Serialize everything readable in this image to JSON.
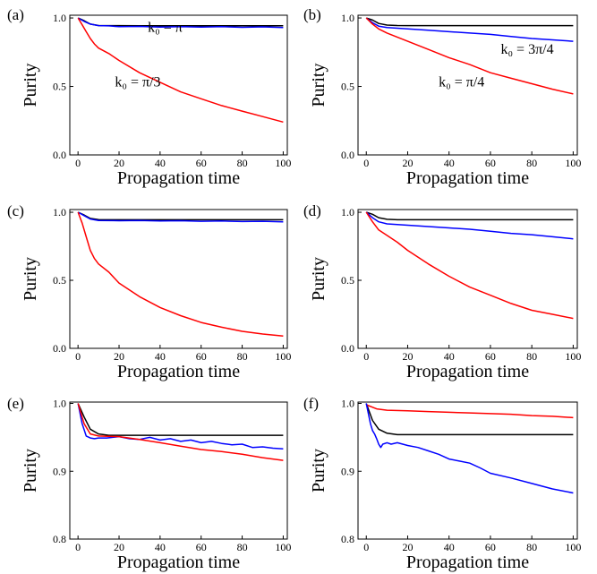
{
  "chart_data": [
    {
      "panel": "(a)",
      "type": "line",
      "xlabel": "Propagation time",
      "ylabel": "Purity",
      "xlim": [
        -4,
        102
      ],
      "ylim": [
        0,
        1.02
      ],
      "xticks": [
        "0",
        "20",
        "40",
        "60",
        "80",
        "100"
      ],
      "yticks": [
        "0.0",
        "0.5",
        "1.0"
      ],
      "series": [
        {
          "color": "#000000",
          "x": [
            0,
            3,
            6,
            10,
            15,
            20,
            30,
            50,
            70,
            100
          ],
          "y": [
            1.0,
            0.98,
            0.955,
            0.945,
            0.944,
            0.944,
            0.943,
            0.943,
            0.943,
            0.943
          ]
        },
        {
          "color": "#0000ff",
          "x": [
            0,
            3,
            6,
            10,
            15,
            20,
            30,
            40,
            50,
            60,
            70,
            80,
            90,
            100
          ],
          "y": [
            1.0,
            0.975,
            0.955,
            0.944,
            0.942,
            0.936,
            0.938,
            0.934,
            0.937,
            0.933,
            0.936,
            0.932,
            0.935,
            0.93
          ]
        },
        {
          "color": "#ff0000",
          "x": [
            0,
            2,
            4,
            6,
            8,
            10,
            15,
            20,
            30,
            40,
            50,
            60,
            70,
            80,
            90,
            100
          ],
          "y": [
            1.0,
            0.95,
            0.9,
            0.85,
            0.81,
            0.78,
            0.74,
            0.69,
            0.6,
            0.53,
            0.46,
            0.41,
            0.36,
            0.32,
            0.28,
            0.24
          ]
        }
      ],
      "annotations": [
        "k₀ = π",
        "k₀ = π/3"
      ]
    },
    {
      "panel": "(b)",
      "type": "line",
      "xlabel": "Propagation time",
      "ylabel": "Purity",
      "xlim": [
        -4,
        102
      ],
      "ylim": [
        0,
        1.02
      ],
      "xticks": [
        "0",
        "20",
        "40",
        "60",
        "80",
        "100"
      ],
      "yticks": [
        "0.0",
        "0.5",
        "1.0"
      ],
      "series": [
        {
          "color": "#000000",
          "x": [
            0,
            3,
            6,
            10,
            15,
            20,
            50,
            100
          ],
          "y": [
            1.0,
            0.985,
            0.96,
            0.948,
            0.945,
            0.944,
            0.944,
            0.944
          ]
        },
        {
          "color": "#0000ff",
          "x": [
            0,
            3,
            6,
            10,
            20,
            30,
            40,
            50,
            60,
            70,
            80,
            90,
            100
          ],
          "y": [
            1.0,
            0.965,
            0.94,
            0.93,
            0.92,
            0.91,
            0.9,
            0.89,
            0.88,
            0.865,
            0.85,
            0.84,
            0.83
          ]
        },
        {
          "color": "#ff0000",
          "x": [
            0,
            3,
            6,
            10,
            20,
            30,
            40,
            50,
            60,
            70,
            80,
            90,
            100
          ],
          "y": [
            1.0,
            0.955,
            0.92,
            0.89,
            0.83,
            0.77,
            0.71,
            0.66,
            0.6,
            0.56,
            0.52,
            0.48,
            0.445
          ]
        }
      ],
      "annotations": [
        "k₀ = 3π/4",
        "k₀ = π/4"
      ]
    },
    {
      "panel": "(c)",
      "type": "line",
      "xlabel": "Propagation time",
      "ylabel": "Purity",
      "xlim": [
        -4,
        102
      ],
      "ylim": [
        0,
        1.02
      ],
      "xticks": [
        "0",
        "20",
        "40",
        "60",
        "80",
        "100"
      ],
      "yticks": [
        "0.0",
        "0.5",
        "1.0"
      ],
      "series": [
        {
          "color": "#000000",
          "x": [
            0,
            3,
            6,
            10,
            15,
            20,
            50,
            100
          ],
          "y": [
            1.0,
            0.98,
            0.955,
            0.946,
            0.945,
            0.945,
            0.945,
            0.945
          ]
        },
        {
          "color": "#0000ff",
          "x": [
            0,
            3,
            6,
            10,
            20,
            30,
            40,
            50,
            60,
            70,
            80,
            90,
            100
          ],
          "y": [
            1.0,
            0.975,
            0.95,
            0.94,
            0.938,
            0.94,
            0.936,
            0.938,
            0.934,
            0.936,
            0.932,
            0.934,
            0.93
          ]
        },
        {
          "color": "#ff0000",
          "x": [
            0,
            2,
            4,
            6,
            8,
            10,
            15,
            20,
            30,
            40,
            50,
            60,
            70,
            80,
            90,
            100
          ],
          "y": [
            1.0,
            0.92,
            0.82,
            0.72,
            0.66,
            0.62,
            0.56,
            0.48,
            0.38,
            0.3,
            0.24,
            0.19,
            0.155,
            0.125,
            0.105,
            0.09
          ]
        }
      ]
    },
    {
      "panel": "(d)",
      "type": "line",
      "xlabel": "Propagation time",
      "ylabel": "Purity",
      "xlim": [
        -4,
        102
      ],
      "ylim": [
        0,
        1.02
      ],
      "xticks": [
        "0",
        "20",
        "40",
        "60",
        "80",
        "100"
      ],
      "yticks": [
        "0.0",
        "0.5",
        "1.0"
      ],
      "series": [
        {
          "color": "#000000",
          "x": [
            0,
            3,
            6,
            10,
            15,
            20,
            50,
            100
          ],
          "y": [
            1.0,
            0.985,
            0.96,
            0.948,
            0.945,
            0.945,
            0.945,
            0.945
          ]
        },
        {
          "color": "#0000ff",
          "x": [
            0,
            3,
            6,
            10,
            20,
            30,
            40,
            50,
            60,
            70,
            80,
            90,
            100
          ],
          "y": [
            1.0,
            0.96,
            0.93,
            0.915,
            0.905,
            0.895,
            0.885,
            0.875,
            0.86,
            0.845,
            0.835,
            0.82,
            0.805
          ]
        },
        {
          "color": "#ff0000",
          "x": [
            0,
            3,
            6,
            10,
            15,
            20,
            30,
            40,
            50,
            60,
            70,
            80,
            90,
            100
          ],
          "y": [
            1.0,
            0.93,
            0.87,
            0.83,
            0.78,
            0.72,
            0.62,
            0.53,
            0.45,
            0.39,
            0.33,
            0.28,
            0.25,
            0.22
          ]
        }
      ]
    },
    {
      "panel": "(e)",
      "type": "line",
      "xlabel": "Propagation time",
      "ylabel": "Purity",
      "xlim": [
        -4,
        102
      ],
      "ylim": [
        0.8,
        1.002
      ],
      "xticks": [
        "0",
        "20",
        "40",
        "60",
        "80",
        "100"
      ],
      "yticks": [
        "0.8",
        "0.9",
        "1.0"
      ],
      "series": [
        {
          "color": "#000000",
          "x": [
            0,
            3,
            6,
            10,
            15,
            20,
            50,
            100
          ],
          "y": [
            1.0,
            0.98,
            0.962,
            0.955,
            0.953,
            0.953,
            0.953,
            0.953
          ]
        },
        {
          "color": "#0000ff",
          "x": [
            0,
            2,
            4,
            6,
            8,
            10,
            14,
            20,
            25,
            30,
            35,
            40,
            45,
            50,
            55,
            60,
            65,
            70,
            75,
            80,
            85,
            90,
            95,
            100
          ],
          "y": [
            1.0,
            0.97,
            0.952,
            0.949,
            0.948,
            0.949,
            0.949,
            0.951,
            0.948,
            0.947,
            0.95,
            0.946,
            0.948,
            0.944,
            0.946,
            0.942,
            0.944,
            0.941,
            0.939,
            0.94,
            0.935,
            0.936,
            0.934,
            0.933
          ]
        },
        {
          "color": "#ff0000",
          "x": [
            0,
            3,
            6,
            10,
            20,
            30,
            40,
            50,
            60,
            70,
            80,
            90,
            100
          ],
          "y": [
            1.0,
            0.97,
            0.955,
            0.952,
            0.951,
            0.947,
            0.942,
            0.937,
            0.932,
            0.929,
            0.925,
            0.92,
            0.916
          ]
        }
      ]
    },
    {
      "panel": "(f)",
      "type": "line",
      "xlabel": "Propagation time",
      "ylabel": "Purity",
      "xlim": [
        -4,
        102
      ],
      "ylim": [
        0.8,
        1.002
      ],
      "xticks": [
        "0",
        "20",
        "40",
        "60",
        "80",
        "100"
      ],
      "yticks": [
        "0.8",
        "0.9",
        "1.0"
      ],
      "series": [
        {
          "color": "#000000",
          "x": [
            0,
            3,
            6,
            10,
            15,
            20,
            50,
            100
          ],
          "y": [
            1.0,
            0.975,
            0.962,
            0.956,
            0.954,
            0.954,
            0.954,
            0.954
          ]
        },
        {
          "color": "#ff0000",
          "x": [
            0,
            5,
            10,
            20,
            30,
            40,
            50,
            60,
            70,
            80,
            90,
            100
          ],
          "y": [
            0.998,
            0.992,
            0.99,
            0.989,
            0.988,
            0.987,
            0.986,
            0.985,
            0.984,
            0.982,
            0.981,
            0.979
          ]
        },
        {
          "color": "#0000ff",
          "x": [
            0,
            2,
            3,
            4,
            5,
            6,
            7,
            8,
            10,
            12,
            15,
            20,
            25,
            30,
            35,
            40,
            45,
            50,
            55,
            60,
            70,
            80,
            90,
            100
          ],
          "y": [
            1.0,
            0.97,
            0.96,
            0.955,
            0.948,
            0.94,
            0.935,
            0.94,
            0.942,
            0.94,
            0.942,
            0.938,
            0.935,
            0.93,
            0.925,
            0.918,
            0.915,
            0.912,
            0.905,
            0.897,
            0.89,
            0.882,
            0.874,
            0.868
          ]
        }
      ]
    }
  ]
}
